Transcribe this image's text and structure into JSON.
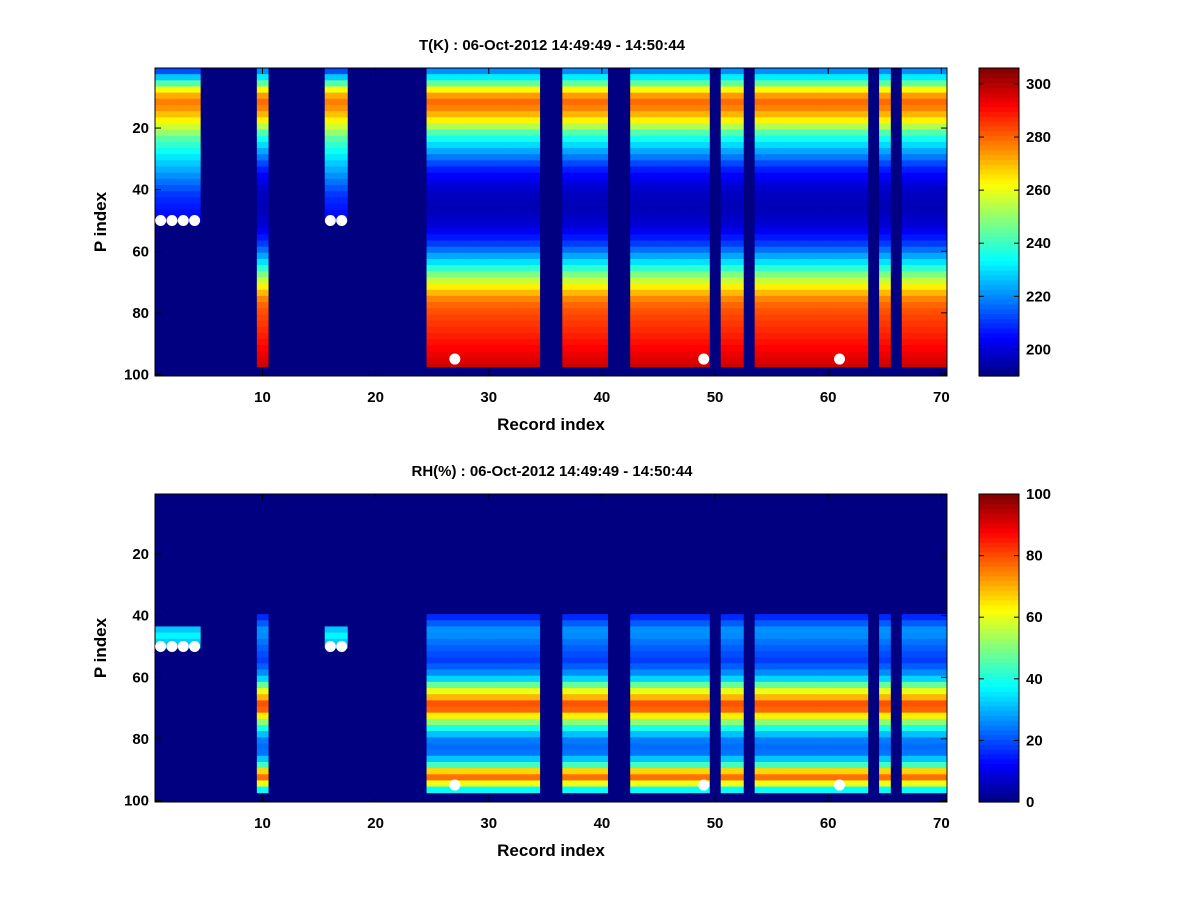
{
  "figure": {
    "background": "#ffffff"
  },
  "colormap": "jet",
  "chart_data": [
    {
      "type": "heatmap",
      "title": "T(K) : 06-Oct-2012 14:49:49 - 14:50:44",
      "xlabel": "Record index",
      "ylabel": "P index",
      "xlim": [
        0.5,
        70.5
      ],
      "ylim": [
        0.5,
        100.5
      ],
      "y_reversed": true,
      "xticks": [
        10,
        20,
        30,
        40,
        50,
        60,
        70
      ],
      "yticks": [
        20,
        40,
        60,
        80,
        100
      ],
      "xtick_labels": [
        "10",
        "20",
        "30",
        "40",
        "50",
        "60",
        "70"
      ],
      "ytick_labels": [
        "20",
        "40",
        "60",
        "80",
        "100"
      ],
      "colorbar": {
        "clim": [
          190,
          306
        ],
        "ticks": [
          200,
          220,
          240,
          260,
          280,
          300
        ],
        "tick_labels": [
          "200",
          "220",
          "240",
          "260",
          "280",
          "300"
        ]
      },
      "fill_value": 190,
      "valid_profiles": [
        {
          "records": [
            1,
            4
          ],
          "p_range": [
            1,
            50
          ],
          "profile": "partial"
        },
        {
          "records": [
            10,
            10
          ],
          "p_range": [
            1,
            97
          ],
          "profile": "full"
        },
        {
          "records": [
            16,
            17
          ],
          "p_range": [
            1,
            50
          ],
          "profile": "partial"
        },
        {
          "records": [
            25,
            25
          ],
          "p_range": [
            1,
            97
          ],
          "profile": "full"
        },
        {
          "records": [
            26,
            34
          ],
          "p_range": [
            1,
            97
          ],
          "profile": "full"
        },
        {
          "records": [
            37,
            40
          ],
          "p_range": [
            1,
            97
          ],
          "profile": "full"
        },
        {
          "records": [
            43,
            48
          ],
          "p_range": [
            1,
            97
          ],
          "profile": "full"
        },
        {
          "records": [
            49,
            49
          ],
          "p_range": [
            1,
            97
          ],
          "profile": "full"
        },
        {
          "records": [
            51,
            52
          ],
          "p_range": [
            1,
            97
          ],
          "profile": "full"
        },
        {
          "records": [
            54,
            63
          ],
          "p_range": [
            1,
            97
          ],
          "profile": "full"
        },
        {
          "records": [
            65,
            65
          ],
          "p_range": [
            1,
            97
          ],
          "profile": "full"
        },
        {
          "records": [
            67,
            70
          ],
          "p_range": [
            1,
            97
          ],
          "profile": "full"
        }
      ],
      "profile_full": {
        "p": [
          1,
          5,
          8,
          11,
          14,
          18,
          22,
          28,
          34,
          40,
          46,
          52,
          58,
          64,
          68,
          72,
          76,
          80,
          86,
          92,
          97
        ],
        "value": [
          218,
          240,
          268,
          280,
          276,
          262,
          240,
          222,
          206,
          198,
          196,
          200,
          212,
          232,
          250,
          266,
          278,
          283,
          287,
          292,
          297
        ]
      },
      "profile_partial": {
        "p": [
          1,
          5,
          8,
          11,
          14,
          18,
          24,
          30,
          36,
          42,
          50
        ],
        "value": [
          210,
          238,
          266,
          278,
          274,
          262,
          242,
          230,
          220,
          210,
          204
        ]
      },
      "markers": [
        {
          "x": 1,
          "y": 50
        },
        {
          "x": 2,
          "y": 50
        },
        {
          "x": 3,
          "y": 50
        },
        {
          "x": 4,
          "y": 50
        },
        {
          "x": 16,
          "y": 50
        },
        {
          "x": 17,
          "y": 50
        },
        {
          "x": 27,
          "y": 95
        },
        {
          "x": 49,
          "y": 95
        },
        {
          "x": 61,
          "y": 95
        }
      ]
    },
    {
      "type": "heatmap",
      "title": "RH(%) : 06-Oct-2012 14:49:49 - 14:50:44",
      "xlabel": "Record index",
      "ylabel": "P index",
      "xlim": [
        0.5,
        70.5
      ],
      "ylim": [
        0.5,
        100.5
      ],
      "y_reversed": true,
      "xticks": [
        10,
        20,
        30,
        40,
        50,
        60,
        70
      ],
      "yticks": [
        20,
        40,
        60,
        80,
        100
      ],
      "xtick_labels": [
        "10",
        "20",
        "30",
        "40",
        "50",
        "60",
        "70"
      ],
      "ytick_labels": [
        "20",
        "40",
        "60",
        "80",
        "100"
      ],
      "colorbar": {
        "clim": [
          0,
          100
        ],
        "ticks": [
          0,
          20,
          40,
          60,
          80,
          100
        ],
        "tick_labels": [
          "0",
          "20",
          "40",
          "60",
          "80",
          "100"
        ]
      },
      "fill_value": 0,
      "valid_profiles": [
        {
          "records": [
            1,
            4
          ],
          "p_range": [
            44,
            50
          ],
          "profile": "partial"
        },
        {
          "records": [
            10,
            10
          ],
          "p_range": [
            40,
            97
          ],
          "profile": "full"
        },
        {
          "records": [
            16,
            17
          ],
          "p_range": [
            44,
            50
          ],
          "profile": "partial"
        },
        {
          "records": [
            25,
            25
          ],
          "p_range": [
            40,
            97
          ],
          "profile": "full"
        },
        {
          "records": [
            26,
            34
          ],
          "p_range": [
            40,
            97
          ],
          "profile": "full"
        },
        {
          "records": [
            37,
            40
          ],
          "p_range": [
            40,
            97
          ],
          "profile": "full"
        },
        {
          "records": [
            43,
            48
          ],
          "p_range": [
            40,
            97
          ],
          "profile": "full"
        },
        {
          "records": [
            49,
            49
          ],
          "p_range": [
            40,
            97
          ],
          "profile": "full"
        },
        {
          "records": [
            51,
            52
          ],
          "p_range": [
            40,
            97
          ],
          "profile": "full"
        },
        {
          "records": [
            54,
            63
          ],
          "p_range": [
            40,
            97
          ],
          "profile": "full"
        },
        {
          "records": [
            65,
            65
          ],
          "p_range": [
            40,
            97
          ],
          "profile": "full"
        },
        {
          "records": [
            67,
            70
          ],
          "p_range": [
            40,
            97
          ],
          "profile": "full"
        }
      ],
      "profile_full": {
        "p": [
          40,
          45,
          50,
          55,
          60,
          64,
          67,
          69,
          71,
          73,
          76,
          80,
          84,
          88,
          90,
          92,
          94,
          96,
          97
        ],
        "value": [
          15,
          28,
          22,
          18,
          30,
          58,
          72,
          82,
          76,
          60,
          42,
          25,
          22,
          38,
          62,
          80,
          66,
          45,
          30
        ]
      },
      "profile_partial": {
        "p": [
          44,
          46,
          48,
          50
        ],
        "value": [
          30,
          38,
          34,
          28
        ]
      },
      "markers": [
        {
          "x": 1,
          "y": 50
        },
        {
          "x": 2,
          "y": 50
        },
        {
          "x": 3,
          "y": 50
        },
        {
          "x": 4,
          "y": 50
        },
        {
          "x": 16,
          "y": 50
        },
        {
          "x": 17,
          "y": 50
        },
        {
          "x": 27,
          "y": 95
        },
        {
          "x": 49,
          "y": 95
        },
        {
          "x": 61,
          "y": 95
        }
      ]
    }
  ]
}
